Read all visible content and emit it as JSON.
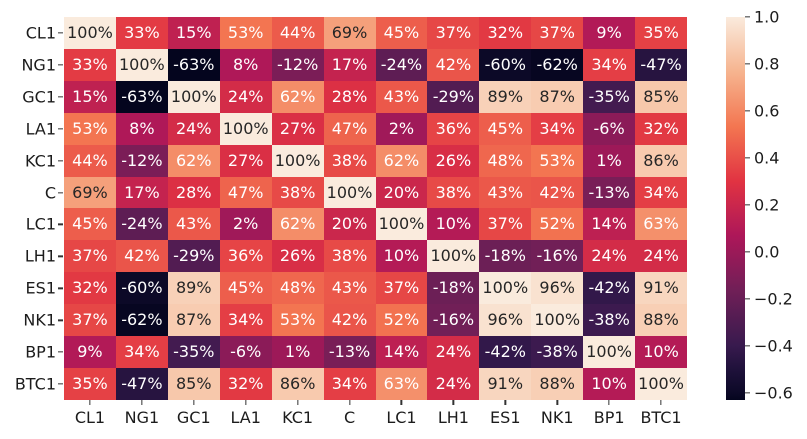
{
  "chart_data": {
    "type": "heatmap",
    "title": "",
    "xlabel": "",
    "ylabel": "",
    "categories": [
      "CL1",
      "NG1",
      "GC1",
      "LA1",
      "KC1",
      "C",
      "LC1",
      "LH1",
      "ES1",
      "NK1",
      "BP1",
      "BTC1"
    ],
    "values_percent": [
      [
        100,
        33,
        15,
        53,
        44,
        69,
        45,
        37,
        32,
        37,
        9,
        35
      ],
      [
        33,
        100,
        -63,
        8,
        -12,
        17,
        -24,
        42,
        -60,
        -62,
        34,
        -47
      ],
      [
        15,
        -63,
        100,
        24,
        62,
        28,
        43,
        -29,
        89,
        87,
        -35,
        85
      ],
      [
        53,
        8,
        24,
        100,
        27,
        47,
        2,
        36,
        45,
        34,
        -6,
        32
      ],
      [
        44,
        -12,
        62,
        27,
        100,
        38,
        62,
        26,
        48,
        53,
        1,
        86
      ],
      [
        69,
        17,
        28,
        47,
        38,
        100,
        20,
        38,
        43,
        42,
        -13,
        34
      ],
      [
        45,
        -24,
        43,
        2,
        62,
        20,
        100,
        10,
        37,
        52,
        14,
        63
      ],
      [
        37,
        42,
        -29,
        36,
        26,
        38,
        10,
        100,
        -18,
        -16,
        24,
        24
      ],
      [
        32,
        -60,
        89,
        45,
        48,
        43,
        37,
        -18,
        100,
        96,
        -42,
        91
      ],
      [
        37,
        -62,
        87,
        34,
        53,
        42,
        52,
        -16,
        96,
        100,
        -38,
        88
      ],
      [
        9,
        34,
        -35,
        -6,
        1,
        -13,
        14,
        24,
        -42,
        -38,
        100,
        10
      ],
      [
        35,
        -47,
        85,
        32,
        86,
        34,
        63,
        24,
        91,
        88,
        10,
        100
      ]
    ],
    "cell_label_suffix": "%",
    "grid": false,
    "colorbar": {
      "position": "right",
      "vmin": -0.63,
      "vmax": 1.0,
      "tick_values": [
        1.0,
        0.8,
        0.6,
        0.4,
        0.2,
        0.0,
        -0.2,
        -0.4,
        -0.6
      ],
      "tick_labels": [
        "1.0",
        "0.8",
        "0.6",
        "0.4",
        "0.2",
        "0.0",
        "−0.2",
        "−0.4",
        "−0.6"
      ]
    },
    "colormap": {
      "name": "rocket",
      "anchors": [
        {
          "t": 0.0,
          "color": "#04051E"
        },
        {
          "t": 0.018,
          "color": "#0C0927"
        },
        {
          "t": 0.071,
          "color": "#1C1038"
        },
        {
          "t": 0.143,
          "color": "#381A4E"
        },
        {
          "t": 0.286,
          "color": "#701F57"
        },
        {
          "t": 0.429,
          "color": "#AD1759"
        },
        {
          "t": 0.571,
          "color": "#E13342"
        },
        {
          "t": 0.714,
          "color": "#F37651"
        },
        {
          "t": 0.857,
          "color": "#F6B48F"
        },
        {
          "t": 1.0,
          "color": "#FAEBDD"
        }
      ]
    },
    "annotation_text_dark": "#262626",
    "annotation_text_light": "#FFFFFF",
    "axis_tick_color": "#1C1C1C",
    "background": "#FFFFFF"
  }
}
